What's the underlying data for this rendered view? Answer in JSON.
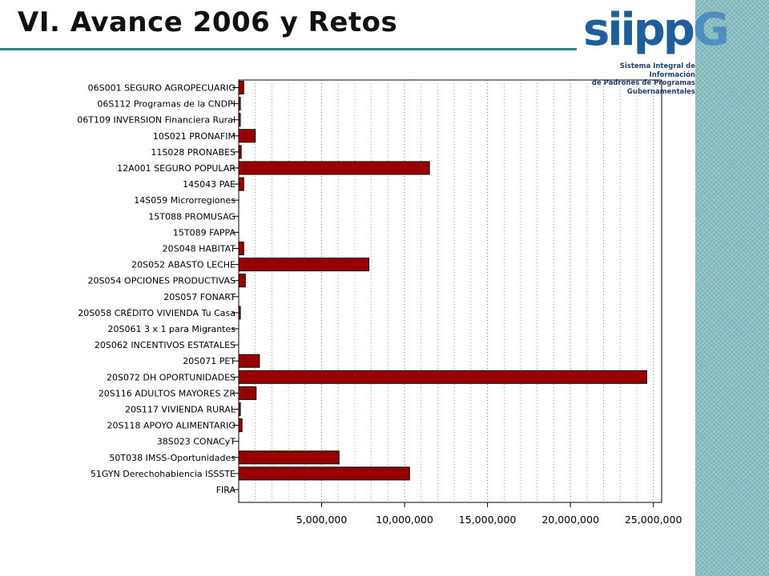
{
  "slide": {
    "title": "VI. Avance 2006 y Retos"
  },
  "logo": {
    "name": "siipp-G",
    "subtitle_lines": [
      "Sistema Integral de Información",
      "de Padrones de Programas",
      "Gubernamentales"
    ]
  },
  "colors": {
    "bar": "#990000",
    "title_rule": "#2f7f86",
    "side_stripe": "#7db6b9"
  },
  "chart_data": {
    "type": "bar",
    "orientation": "horizontal",
    "categories": [
      "06S001 SEGURO AGROPECUARIO",
      "06S112  Programas de la CNDPI",
      "06T109 INVERSION Financiera Rural",
      "10S021  PRONAFIM",
      "11S028  PRONABES",
      "12A001  SEGURO POPULAR",
      "14S043  PAE",
      "14S059  Microrregiones",
      "15T088  PROMUSAG",
      "15T089  FAPPA",
      "20S048  HABITAT",
      "20S052  ABASTO LECHE",
      "20S054  OPCIONES PRODUCTIVAS",
      "20S057  FONART",
      "20S058  CRÉDITO VIVIENDA Tu Casa",
      "20S061  3 x 1 para Migrantes",
      "20S062  INCENTIVOS ESTATALES",
      "20S071  PET",
      "20S072  DH OPORTUNIDADES",
      "20S116  ADULTOS MAYORES ZR",
      "20S117  VIVIENDA RURAL",
      "20S118  APOYO ALIMENTARIO",
      "38S023  CONACyT",
      "50T038  IMSS-Oportunidades",
      "51GYN  Derechohabiencia ISSSTE",
      "FIRA"
    ],
    "values": [
      300000,
      100000,
      50000,
      1000000,
      150000,
      11500000,
      300000,
      0,
      0,
      0,
      300000,
      7850000,
      400000,
      0,
      100000,
      0,
      0,
      1250000,
      24600000,
      1050000,
      100000,
      200000,
      0,
      6050000,
      10300000,
      0
    ],
    "xlim": [
      0,
      25500000
    ],
    "xticks": [
      5000000,
      10000000,
      15000000,
      20000000,
      25000000
    ],
    "xtick_labels": [
      "5,000,000",
      "10,000,000",
      "15,000,000",
      "20,000,000",
      "25,000,000"
    ],
    "grid": "vertical dotted",
    "xlabel": "",
    "ylabel": ""
  }
}
